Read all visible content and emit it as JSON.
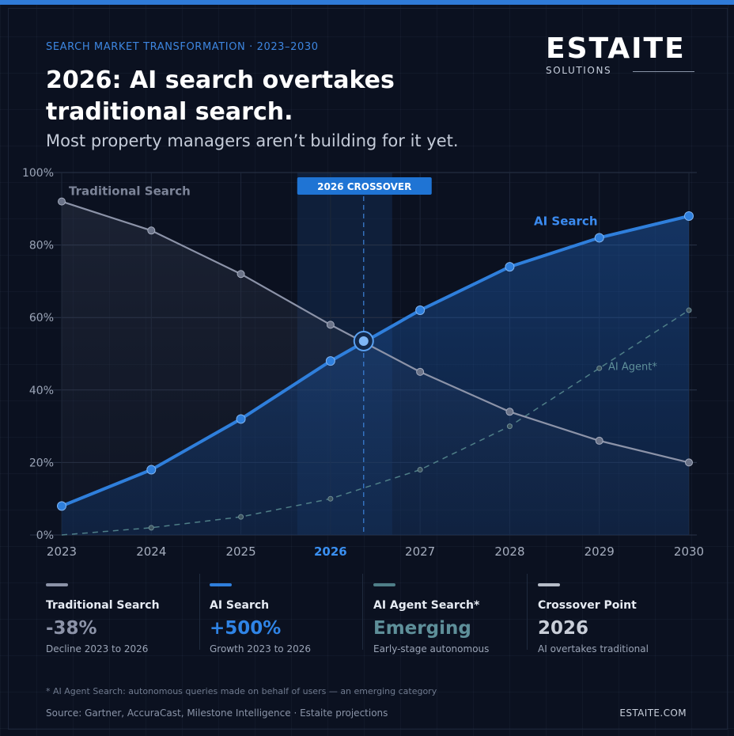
{
  "header": {
    "eyebrow": "SEARCH MARKET TRANSFORMATION · 2023–2030",
    "headline": "2026: AI search overtakes traditional search.",
    "subhead": "Most property managers aren’t building for it yet."
  },
  "logo": {
    "wordmark": "ESTAITE",
    "tagline": "SOLUTIONS"
  },
  "colors": {
    "traditional": "#8c93a8",
    "ai_search": "#2f7fdc",
    "ai_agent": "#4f7f88",
    "crossover": "#b6bcc8",
    "accent": "#2f7bd8"
  },
  "chart_data": {
    "type": "line",
    "x": [
      "2023",
      "2024",
      "2025",
      "2026",
      "2027",
      "2028",
      "2029",
      "2030"
    ],
    "ylim": [
      0,
      100
    ],
    "y_ticks": [
      "0%",
      "20%",
      "40%",
      "60%",
      "80%",
      "100%"
    ],
    "highlight_x": "2026",
    "crossover_label": "2026 CROSSOVER",
    "crossover_point": {
      "x": 2026.37,
      "y": 53.5
    },
    "series": [
      {
        "name": "Traditional Search",
        "x": [
          2023,
          2024,
          2025,
          2026,
          2027,
          2028,
          2029,
          2030
        ],
        "values": [
          92,
          84,
          72,
          58,
          45,
          34,
          26,
          20
        ]
      },
      {
        "name": "AI Search",
        "x": [
          2023,
          2024,
          2025,
          2026,
          2027,
          2028,
          2029,
          2030
        ],
        "values": [
          8,
          18,
          32,
          48,
          62,
          74,
          82,
          88
        ]
      },
      {
        "name": "AI Agent*",
        "x": [
          2023,
          2024,
          2025,
          2026,
          2027,
          2028,
          2029,
          2030
        ],
        "values": [
          0,
          2,
          5,
          10,
          18,
          30,
          46,
          62
        ]
      }
    ],
    "grid": true
  },
  "legend": [
    {
      "name": "Traditional Search",
      "value": "-38%",
      "desc": "Decline 2023 to 2026"
    },
    {
      "name": "AI Search",
      "value": "+500%",
      "desc": "Growth 2023 to 2026"
    },
    {
      "name": "AI Agent Search*",
      "value": "Emerging",
      "desc": "Early-stage autonomous"
    },
    {
      "name": "Crossover Point",
      "value": "2026",
      "desc": "AI overtakes traditional"
    }
  ],
  "footer": {
    "footnote": "* AI Agent Search: autonomous queries made on behalf of users — an emerging category",
    "source": "Source: Gartner, AccuraCast, Milestone Intelligence · Estaite projections",
    "site": "ESTAITE.COM"
  }
}
